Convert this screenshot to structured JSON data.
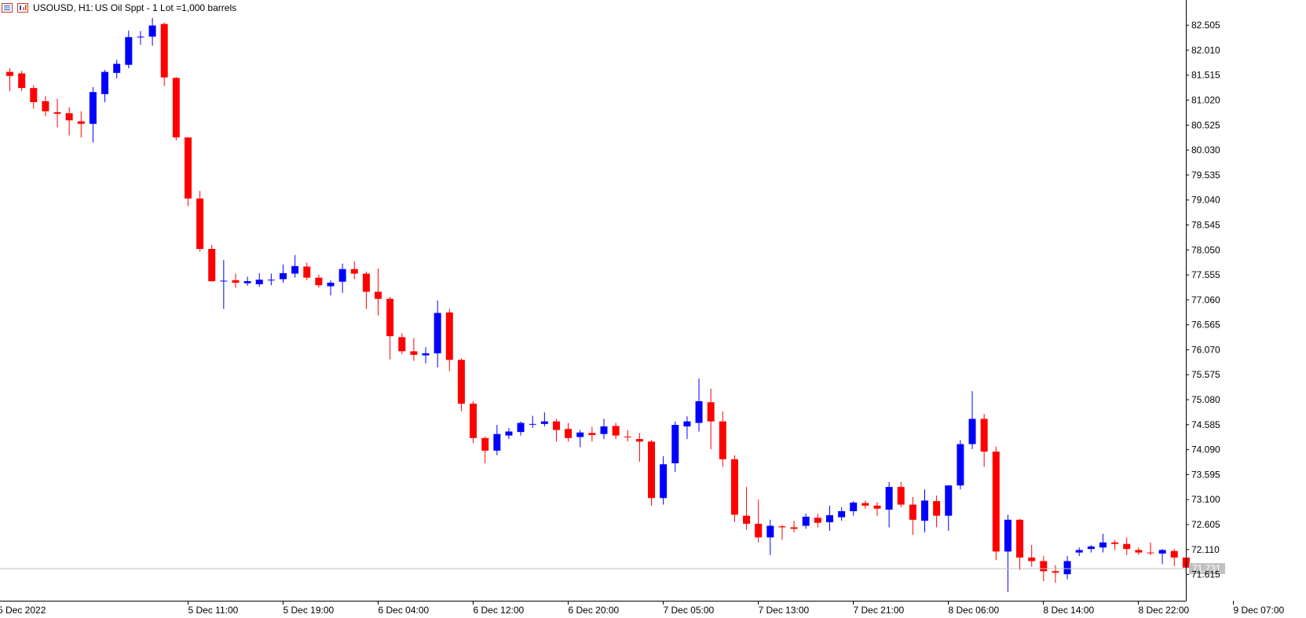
{
  "header": {
    "symbol": "USOUSD, H1:",
    "description": "US Oil Sppt - 1 Lot =1,000 barrels",
    "icons": [
      "list-icon",
      "chart-bars-icon"
    ]
  },
  "colors": {
    "bull": "#0000ff",
    "bear": "#ff0000",
    "axis": "#000000",
    "price_line": "#c0c0c0",
    "price_label_bg": "#c0c0c0",
    "price_label_fg": "#ffffff"
  },
  "chart_data": {
    "type": "candlestick",
    "symbol": "USOUSD",
    "timeframe": "H1",
    "y_axis_position": "right",
    "grid": false,
    "ylim": [
      71.25,
      82.85
    ],
    "current_price": "71.731",
    "y_ticks": [
      "82.505",
      "82.010",
      "81.515",
      "81.020",
      "80.525",
      "80.030",
      "79.535",
      "79.040",
      "78.545",
      "78.050",
      "77.555",
      "77.060",
      "76.565",
      "76.070",
      "75.575",
      "75.080",
      "74.585",
      "74.090",
      "73.595",
      "73.100",
      "72.605",
      "72.110",
      "71.615"
    ],
    "x_ticks": [
      {
        "label": "5 Dec 2022",
        "index": 0
      },
      {
        "label": "5 Dec 11:00",
        "index": 8
      },
      {
        "label": "5 Dec 19:00",
        "index": 16
      },
      {
        "label": "6 Dec 04:00",
        "index": 24
      },
      {
        "label": "6 Dec 12:00",
        "index": 32
      },
      {
        "label": "6 Dec 20:00",
        "index": 40
      },
      {
        "label": "7 Dec 05:00",
        "index": 48
      },
      {
        "label": "7 Dec 13:00",
        "index": 56
      },
      {
        "label": "7 Dec 21:00",
        "index": 64
      },
      {
        "label": "8 Dec 06:00",
        "index": 72
      },
      {
        "label": "8 Dec 14:00",
        "index": 80
      },
      {
        "label": "8 Dec 22:00",
        "index": 88
      },
      {
        "label": "9 Dec 07:00",
        "index": 96
      }
    ],
    "candles": [
      {
        "o": 81.58,
        "h": 81.65,
        "l": 81.2,
        "c": 81.5
      },
      {
        "o": 81.55,
        "h": 81.6,
        "l": 81.2,
        "c": 81.26
      },
      {
        "o": 81.26,
        "h": 81.32,
        "l": 80.85,
        "c": 80.98
      },
      {
        "o": 81.0,
        "h": 81.1,
        "l": 80.7,
        "c": 80.8
      },
      {
        "o": 80.78,
        "h": 81.05,
        "l": 80.48,
        "c": 80.75
      },
      {
        "o": 80.76,
        "h": 80.88,
        "l": 80.32,
        "c": 80.62
      },
      {
        "o": 80.6,
        "h": 80.8,
        "l": 80.28,
        "c": 80.55
      },
      {
        "o": 80.55,
        "h": 81.28,
        "l": 80.18,
        "c": 81.18
      },
      {
        "o": 81.14,
        "h": 81.62,
        "l": 80.98,
        "c": 81.58
      },
      {
        "o": 81.56,
        "h": 81.82,
        "l": 81.45,
        "c": 81.74
      },
      {
        "o": 81.72,
        "h": 82.4,
        "l": 81.65,
        "c": 82.27
      },
      {
        "o": 82.27,
        "h": 82.39,
        "l": 82.12,
        "c": 82.28
      },
      {
        "o": 82.28,
        "h": 82.65,
        "l": 82.1,
        "c": 82.5
      },
      {
        "o": 82.53,
        "h": 82.56,
        "l": 81.3,
        "c": 81.47
      },
      {
        "o": 81.46,
        "h": 81.48,
        "l": 80.22,
        "c": 80.28
      },
      {
        "o": 80.28,
        "h": 80.28,
        "l": 78.92,
        "c": 79.07
      },
      {
        "o": 79.07,
        "h": 79.22,
        "l": 78.02,
        "c": 78.07
      },
      {
        "o": 78.07,
        "h": 78.15,
        "l": 77.42,
        "c": 77.43
      },
      {
        "o": 77.43,
        "h": 77.85,
        "l": 76.88,
        "c": 77.44
      },
      {
        "o": 77.45,
        "h": 77.58,
        "l": 77.3,
        "c": 77.4
      },
      {
        "o": 77.39,
        "h": 77.52,
        "l": 77.34,
        "c": 77.43
      },
      {
        "o": 77.37,
        "h": 77.59,
        "l": 77.32,
        "c": 77.46
      },
      {
        "o": 77.45,
        "h": 77.58,
        "l": 77.35,
        "c": 77.46
      },
      {
        "o": 77.47,
        "h": 77.76,
        "l": 77.4,
        "c": 77.59
      },
      {
        "o": 77.58,
        "h": 77.95,
        "l": 77.5,
        "c": 77.73
      },
      {
        "o": 77.72,
        "h": 77.8,
        "l": 77.45,
        "c": 77.5
      },
      {
        "o": 77.5,
        "h": 77.56,
        "l": 77.3,
        "c": 77.35
      },
      {
        "o": 77.33,
        "h": 77.45,
        "l": 77.15,
        "c": 77.4
      },
      {
        "o": 77.42,
        "h": 77.78,
        "l": 77.2,
        "c": 77.67
      },
      {
        "o": 77.67,
        "h": 77.82,
        "l": 77.47,
        "c": 77.58
      },
      {
        "o": 77.58,
        "h": 77.62,
        "l": 76.88,
        "c": 77.22
      },
      {
        "o": 77.22,
        "h": 77.68,
        "l": 76.75,
        "c": 77.08
      },
      {
        "o": 77.08,
        "h": 77.12,
        "l": 75.88,
        "c": 76.34
      },
      {
        "o": 76.32,
        "h": 76.4,
        "l": 75.98,
        "c": 76.04
      },
      {
        "o": 76.04,
        "h": 76.3,
        "l": 75.85,
        "c": 75.97
      },
      {
        "o": 75.96,
        "h": 76.12,
        "l": 75.8,
        "c": 76.0
      },
      {
        "o": 76.0,
        "h": 77.05,
        "l": 75.72,
        "c": 76.8
      },
      {
        "o": 76.81,
        "h": 76.88,
        "l": 75.65,
        "c": 75.87
      },
      {
        "o": 75.87,
        "h": 75.9,
        "l": 74.85,
        "c": 75.0
      },
      {
        "o": 75.0,
        "h": 75.05,
        "l": 74.22,
        "c": 74.32
      },
      {
        "o": 74.32,
        "h": 74.35,
        "l": 73.82,
        "c": 74.07
      },
      {
        "o": 74.07,
        "h": 74.58,
        "l": 73.98,
        "c": 74.4
      },
      {
        "o": 74.37,
        "h": 74.52,
        "l": 74.3,
        "c": 74.45
      },
      {
        "o": 74.44,
        "h": 74.65,
        "l": 74.37,
        "c": 74.62
      },
      {
        "o": 74.6,
        "h": 74.76,
        "l": 74.52,
        "c": 74.6
      },
      {
        "o": 74.6,
        "h": 74.83,
        "l": 74.55,
        "c": 74.65
      },
      {
        "o": 74.65,
        "h": 74.7,
        "l": 74.25,
        "c": 74.48
      },
      {
        "o": 74.5,
        "h": 74.62,
        "l": 74.25,
        "c": 74.32
      },
      {
        "o": 74.34,
        "h": 74.48,
        "l": 74.14,
        "c": 74.43
      },
      {
        "o": 74.42,
        "h": 74.54,
        "l": 74.25,
        "c": 74.38
      },
      {
        "o": 74.4,
        "h": 74.7,
        "l": 74.3,
        "c": 74.55
      },
      {
        "o": 74.56,
        "h": 74.62,
        "l": 74.3,
        "c": 74.37
      },
      {
        "o": 74.35,
        "h": 74.48,
        "l": 74.25,
        "c": 74.34
      },
      {
        "o": 74.3,
        "h": 74.42,
        "l": 73.85,
        "c": 74.25
      },
      {
        "o": 74.25,
        "h": 74.28,
        "l": 72.98,
        "c": 73.13
      },
      {
        "o": 73.13,
        "h": 73.96,
        "l": 73.0,
        "c": 73.8
      },
      {
        "o": 73.82,
        "h": 74.65,
        "l": 73.65,
        "c": 74.58
      },
      {
        "o": 74.55,
        "h": 74.75,
        "l": 74.3,
        "c": 74.65
      },
      {
        "o": 74.62,
        "h": 75.5,
        "l": 74.45,
        "c": 75.05
      },
      {
        "o": 75.03,
        "h": 75.3,
        "l": 74.1,
        "c": 74.65
      },
      {
        "o": 74.65,
        "h": 74.85,
        "l": 73.75,
        "c": 73.9
      },
      {
        "o": 73.9,
        "h": 73.98,
        "l": 72.65,
        "c": 72.8
      },
      {
        "o": 72.78,
        "h": 73.35,
        "l": 72.5,
        "c": 72.62
      },
      {
        "o": 72.62,
        "h": 73.1,
        "l": 72.25,
        "c": 72.35
      },
      {
        "o": 72.35,
        "h": 72.7,
        "l": 72.0,
        "c": 72.58
      },
      {
        "o": 72.57,
        "h": 72.6,
        "l": 72.3,
        "c": 72.55
      },
      {
        "o": 72.55,
        "h": 72.68,
        "l": 72.45,
        "c": 72.52
      },
      {
        "o": 72.58,
        "h": 72.82,
        "l": 72.52,
        "c": 72.76
      },
      {
        "o": 72.74,
        "h": 72.82,
        "l": 72.55,
        "c": 72.64
      },
      {
        "o": 72.65,
        "h": 72.98,
        "l": 72.48,
        "c": 72.79
      },
      {
        "o": 72.75,
        "h": 72.95,
        "l": 72.68,
        "c": 72.87
      },
      {
        "o": 72.87,
        "h": 73.07,
        "l": 72.78,
        "c": 73.04
      },
      {
        "o": 73.03,
        "h": 73.08,
        "l": 72.92,
        "c": 72.98
      },
      {
        "o": 72.98,
        "h": 73.05,
        "l": 72.78,
        "c": 72.92
      },
      {
        "o": 72.9,
        "h": 73.45,
        "l": 72.55,
        "c": 73.35
      },
      {
        "o": 73.35,
        "h": 73.45,
        "l": 72.95,
        "c": 73.0
      },
      {
        "o": 73.0,
        "h": 73.15,
        "l": 72.4,
        "c": 72.7
      },
      {
        "o": 72.68,
        "h": 73.3,
        "l": 72.45,
        "c": 73.08
      },
      {
        "o": 73.07,
        "h": 73.18,
        "l": 72.55,
        "c": 72.78
      },
      {
        "o": 72.78,
        "h": 73.38,
        "l": 72.48,
        "c": 73.38
      },
      {
        "o": 73.38,
        "h": 74.28,
        "l": 73.3,
        "c": 74.2
      },
      {
        "o": 74.2,
        "h": 75.25,
        "l": 74.1,
        "c": 74.7
      },
      {
        "o": 74.7,
        "h": 74.8,
        "l": 73.75,
        "c": 74.05
      },
      {
        "o": 74.05,
        "h": 74.15,
        "l": 71.9,
        "c": 72.07
      },
      {
        "o": 72.07,
        "h": 72.8,
        "l": 71.27,
        "c": 72.7
      },
      {
        "o": 72.7,
        "h": 72.72,
        "l": 71.7,
        "c": 71.95
      },
      {
        "o": 71.95,
        "h": 72.2,
        "l": 71.77,
        "c": 71.88
      },
      {
        "o": 71.88,
        "h": 71.98,
        "l": 71.48,
        "c": 71.68
      },
      {
        "o": 71.68,
        "h": 71.8,
        "l": 71.45,
        "c": 71.65
      },
      {
        "o": 71.62,
        "h": 71.98,
        "l": 71.52,
        "c": 71.88
      },
      {
        "o": 72.05,
        "h": 72.15,
        "l": 71.98,
        "c": 72.1
      },
      {
        "o": 72.12,
        "h": 72.2,
        "l": 72.05,
        "c": 72.17
      },
      {
        "o": 72.15,
        "h": 72.42,
        "l": 72.05,
        "c": 72.25
      },
      {
        "o": 72.25,
        "h": 72.3,
        "l": 72.1,
        "c": 72.22
      },
      {
        "o": 72.22,
        "h": 72.35,
        "l": 72.0,
        "c": 72.12
      },
      {
        "o": 72.1,
        "h": 72.15,
        "l": 72.0,
        "c": 72.05
      },
      {
        "o": 72.05,
        "h": 72.25,
        "l": 72.0,
        "c": 72.04
      },
      {
        "o": 72.03,
        "h": 72.12,
        "l": 71.82,
        "c": 72.1
      },
      {
        "o": 72.08,
        "h": 72.12,
        "l": 71.78,
        "c": 71.95
      },
      {
        "o": 71.95,
        "h": 71.95,
        "l": 71.55,
        "c": 71.75
      }
    ]
  }
}
